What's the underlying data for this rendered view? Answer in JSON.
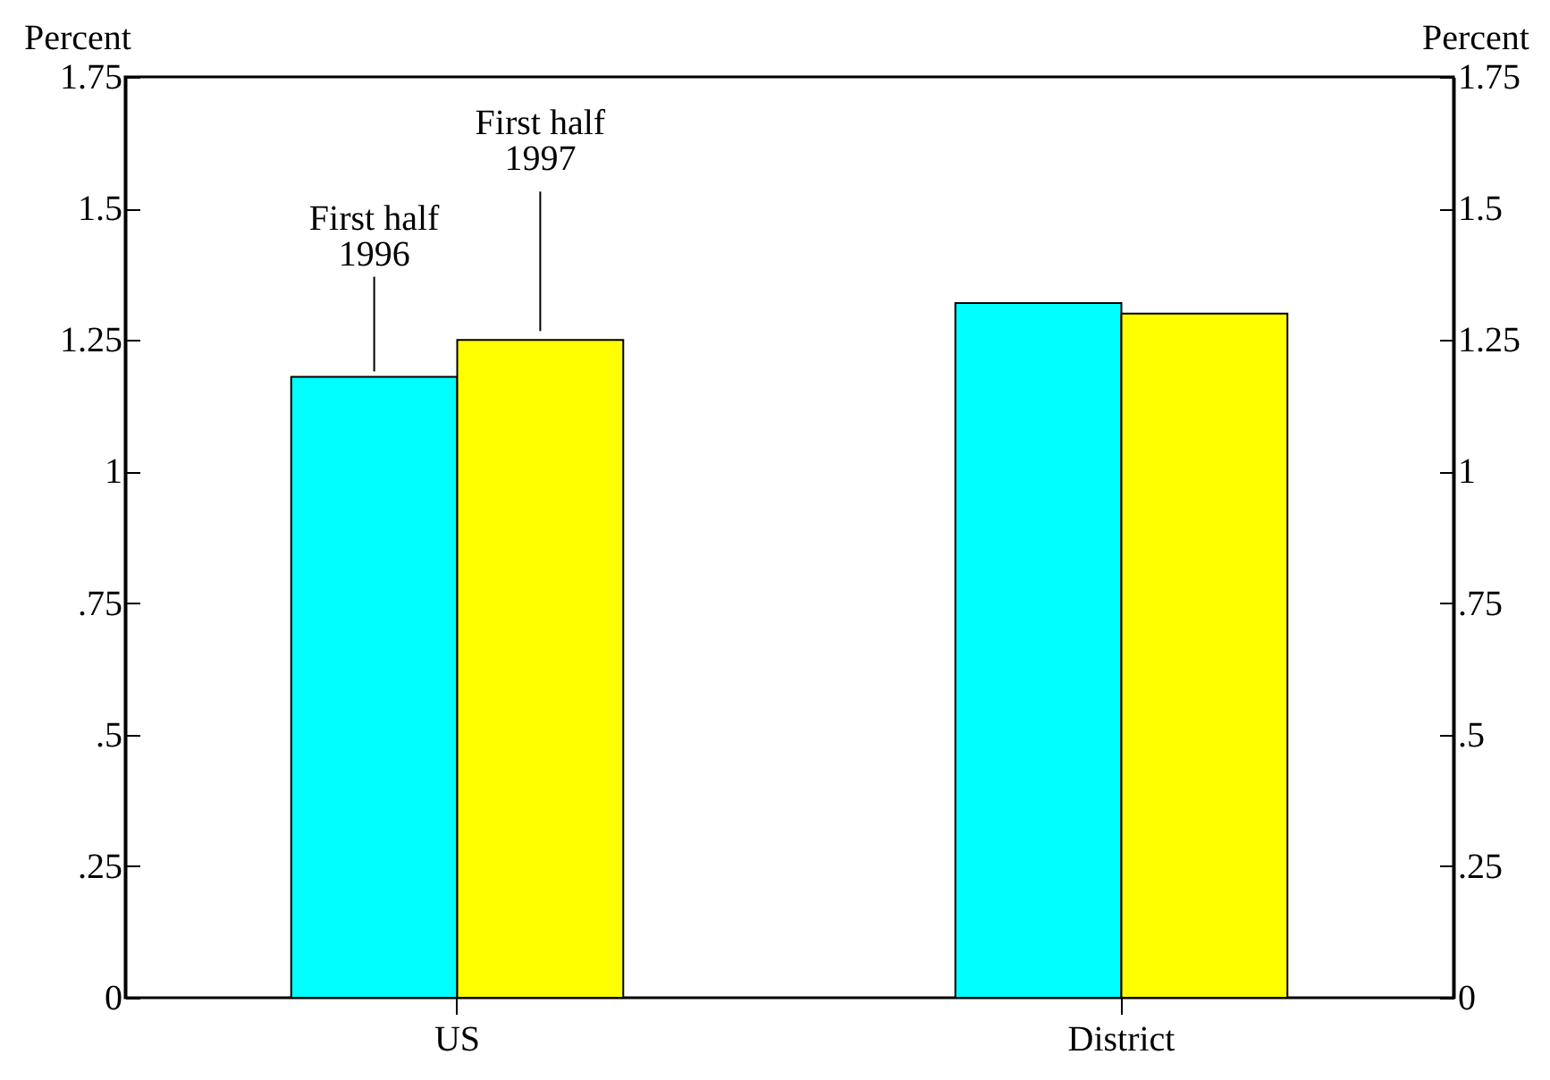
{
  "chart_data": {
    "type": "bar",
    "categories": [
      "US",
      "District"
    ],
    "series": [
      {
        "name": "First half 1996",
        "color": "#00ffff",
        "values": [
          1.18,
          1.32
        ]
      },
      {
        "name": "First half 1997",
        "color": "#ffff00",
        "values": [
          1.25,
          1.3
        ]
      }
    ],
    "ylabel": "Percent",
    "y2label": "Percent",
    "ylim": [
      0,
      1.75
    ],
    "yticks": [
      0,
      {
        "value": 0.25,
        "label": ".25"
      },
      {
        "value": 0.5,
        "label": ".5"
      },
      {
        "value": 0.75,
        "label": ".75"
      },
      1,
      1.25,
      1.5,
      1.75
    ],
    "y2lim": [
      0,
      1.75
    ],
    "y2ticks": [
      0,
      {
        "value": 0.25,
        "label": ".25"
      },
      {
        "value": 0.5,
        "label": ".5"
      },
      {
        "value": 0.75,
        "label": ".75"
      },
      1,
      1.25,
      1.5,
      1.75
    ],
    "legend": false
  }
}
